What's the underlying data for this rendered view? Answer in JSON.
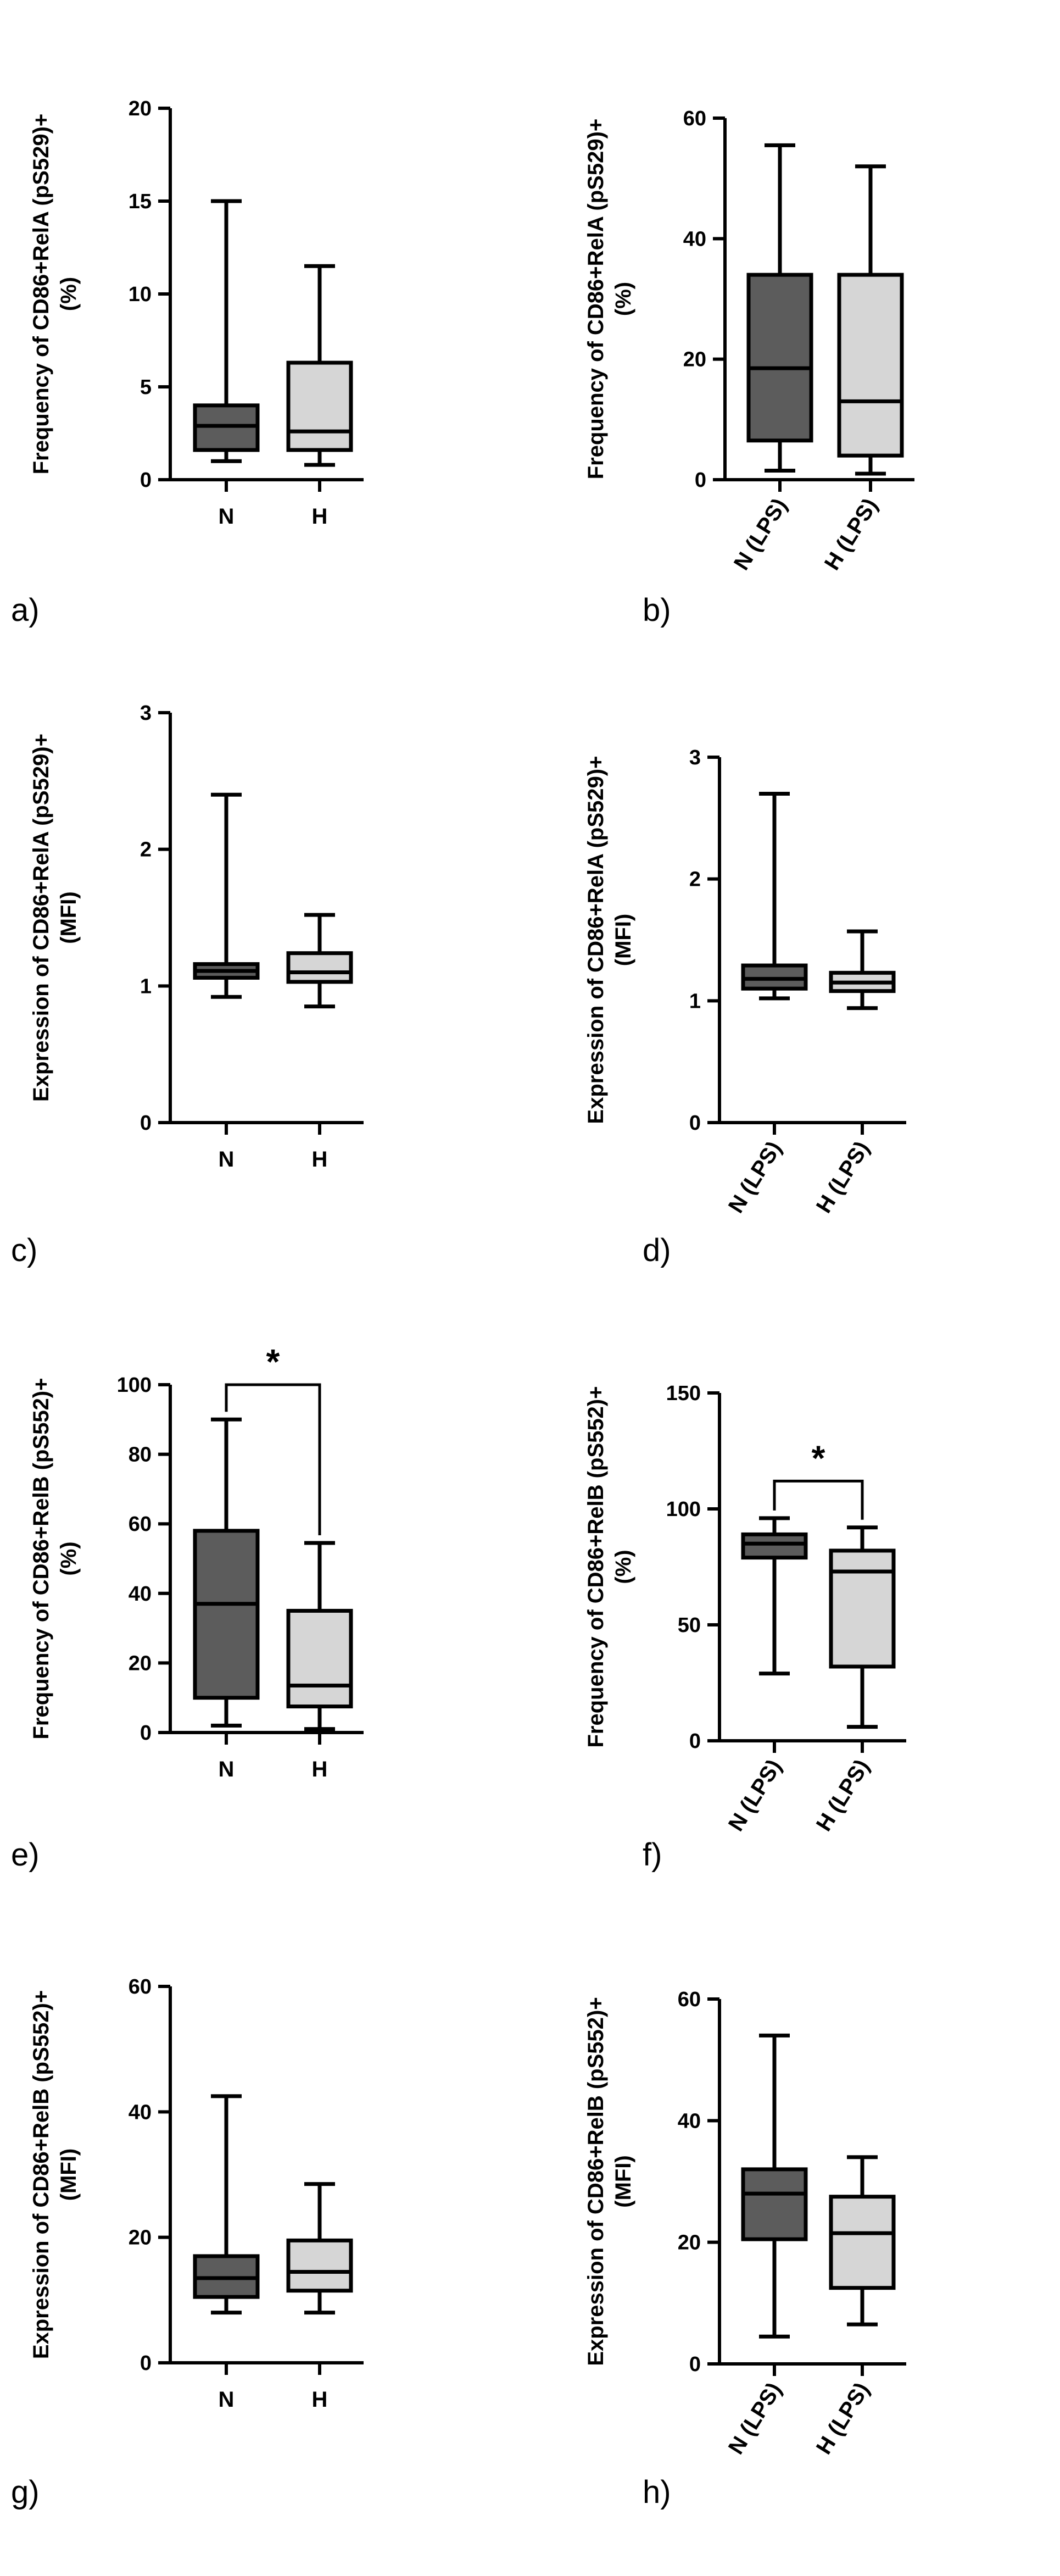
{
  "colors": {
    "N": "#5c5c5c",
    "H": "#d6d6d6",
    "stroke": "#000000"
  },
  "chart_data": [
    {
      "type": "boxplot",
      "panel": "a)",
      "ylabel": [
        "Frequency of CD86+RelA (pS529)+",
        "(%)"
      ],
      "ylim": [
        0,
        20
      ],
      "yticks": [
        0,
        5,
        10,
        15,
        20
      ],
      "categories": [
        "N",
        "H"
      ],
      "boxes": [
        {
          "name": "N",
          "min": 1.0,
          "q1": 1.6,
          "median": 2.9,
          "q3": 4.0,
          "max": 15.0
        },
        {
          "name": "H",
          "min": 0.8,
          "q1": 1.6,
          "median": 2.6,
          "q3": 6.3,
          "max": 11.5
        }
      ],
      "significance": null
    },
    {
      "type": "boxplot",
      "panel": "b)",
      "ylabel": [
        "Frequency of CD86+RelA (pS529)+",
        "(%)"
      ],
      "ylim": [
        0,
        60
      ],
      "yticks": [
        0,
        20,
        40,
        60
      ],
      "categories": [
        "N (LPS)",
        "H (LPS)"
      ],
      "boxes": [
        {
          "name": "N (LPS)",
          "min": 1.5,
          "q1": 6.5,
          "median": 18.5,
          "q3": 34.0,
          "max": 55.5
        },
        {
          "name": "H (LPS)",
          "min": 1.0,
          "q1": 4.0,
          "median": 13.0,
          "q3": 34.0,
          "max": 52.0
        }
      ],
      "significance": null
    },
    {
      "type": "boxplot",
      "panel": "c)",
      "ylabel": [
        "Expression of CD86+RelA (pS529)+",
        "(MFI)"
      ],
      "ylim": [
        0,
        3
      ],
      "yticks": [
        0,
        1,
        2,
        3
      ],
      "categories": [
        "N",
        "H"
      ],
      "boxes": [
        {
          "name": "N",
          "min": 0.92,
          "q1": 1.06,
          "median": 1.11,
          "q3": 1.16,
          "max": 2.4
        },
        {
          "name": "H",
          "min": 0.85,
          "q1": 1.03,
          "median": 1.1,
          "q3": 1.24,
          "max": 1.52
        }
      ],
      "significance": null
    },
    {
      "type": "boxplot",
      "panel": "d)",
      "ylabel": [
        "Expression of CD86+RelA (pS529)+",
        "(MFI)"
      ],
      "ylim": [
        0,
        3
      ],
      "yticks": [
        0,
        1,
        2,
        3
      ],
      "categories": [
        "N (LPS)",
        "H (LPS)"
      ],
      "boxes": [
        {
          "name": "N (LPS)",
          "min": 1.02,
          "q1": 1.1,
          "median": 1.18,
          "q3": 1.29,
          "max": 2.7
        },
        {
          "name": "H (LPS)",
          "min": 0.94,
          "q1": 1.08,
          "median": 1.15,
          "q3": 1.23,
          "max": 1.57
        }
      ],
      "significance": null
    },
    {
      "type": "boxplot",
      "panel": "e)",
      "ylabel": [
        "Frequency of CD86+RelB (pS552)+",
        "(%)"
      ],
      "ylim": [
        0,
        100
      ],
      "yticks": [
        0,
        20,
        40,
        60,
        80,
        100
      ],
      "categories": [
        "N",
        "H"
      ],
      "boxes": [
        {
          "name": "N",
          "min": 2,
          "q1": 10,
          "median": 37,
          "q3": 58,
          "max": 90
        },
        {
          "name": "H",
          "min": 1,
          "q1": 7.5,
          "median": 13.5,
          "q3": 35,
          "max": 54.5
        }
      ],
      "significance": {
        "label": "*",
        "level": 100
      }
    },
    {
      "type": "boxplot",
      "panel": "f)",
      "ylabel": [
        "Frequency of CD86+RelB (pS552)+",
        "(%)"
      ],
      "ylim": [
        0,
        150
      ],
      "yticks": [
        0,
        50,
        100,
        150
      ],
      "categories": [
        "N (LPS)",
        "H (LPS)"
      ],
      "boxes": [
        {
          "name": "N (LPS)",
          "min": 29,
          "q1": 79,
          "median": 85,
          "q3": 89,
          "max": 96
        },
        {
          "name": "H (LPS)",
          "min": 6,
          "q1": 32,
          "median": 73,
          "q3": 82,
          "max": 92
        }
      ],
      "significance": {
        "label": "*",
        "level": 112
      }
    },
    {
      "type": "boxplot",
      "panel": "g)",
      "ylabel": [
        "Expression of CD86+RelB (pS552)+",
        "(MFI)"
      ],
      "ylim": [
        0,
        60
      ],
      "yticks": [
        0,
        20,
        40,
        60
      ],
      "categories": [
        "N",
        "H"
      ],
      "boxes": [
        {
          "name": "N",
          "min": 8,
          "q1": 10.5,
          "median": 13.5,
          "q3": 17,
          "max": 42.5
        },
        {
          "name": "H",
          "min": 8,
          "q1": 11.5,
          "median": 14.5,
          "q3": 19.5,
          "max": 28.5
        }
      ],
      "significance": null
    },
    {
      "type": "boxplot",
      "panel": "h)",
      "ylabel": [
        "Expression of CD86+RelB (pS552)+",
        "(MFI)"
      ],
      "ylim": [
        0,
        60
      ],
      "yticks": [
        0,
        20,
        40,
        60
      ],
      "categories": [
        "N (LPS)",
        "H (LPS)"
      ],
      "boxes": [
        {
          "name": "N (LPS)",
          "min": 4.5,
          "q1": 20.5,
          "median": 28,
          "q3": 32,
          "max": 54
        },
        {
          "name": "H (LPS)",
          "min": 6.5,
          "q1": 12.5,
          "median": 21.5,
          "q3": 27.5,
          "max": 34
        }
      ],
      "significance": null
    }
  ]
}
